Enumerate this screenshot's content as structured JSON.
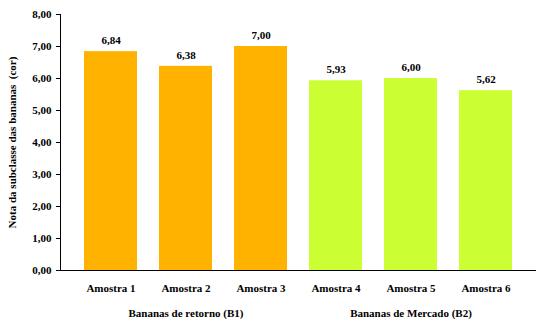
{
  "chart_data": {
    "type": "bar",
    "categories": [
      "Amostra 1",
      "Amostra 2",
      "Amostra 3",
      "Amostra 4",
      "Amostra 5",
      "Amostra 6"
    ],
    "series": [
      {
        "name": "Bananas de retorno (B1)",
        "color": "#FFB300",
        "values": [
          6.84,
          6.38,
          7.0,
          null,
          null,
          null
        ],
        "value_labels": [
          "6,84",
          "6,38",
          "7,00",
          null,
          null,
          null
        ]
      },
      {
        "name": "Bananas de Mercado (B2)",
        "color": "#CCFF33",
        "values": [
          null,
          null,
          null,
          5.93,
          6.0,
          5.62
        ],
        "value_labels": [
          null,
          null,
          null,
          "5,93",
          "6,00",
          "5,62"
        ]
      }
    ],
    "y_label": "Nota da subclasse das bananas  (cor)",
    "ylim": [
      0,
      8
    ],
    "yticks": [
      {
        "value": 0,
        "label": "0,00"
      },
      {
        "value": 1,
        "label": "1,00"
      },
      {
        "value": 2,
        "label": "2,00"
      },
      {
        "value": 3,
        "label": "3,00"
      },
      {
        "value": 4,
        "label": "4,00"
      },
      {
        "value": 5,
        "label": "5,00"
      },
      {
        "value": 6,
        "label": "6,00"
      },
      {
        "value": 7,
        "label": "7,00"
      },
      {
        "value": 8,
        "label": "8,00"
      }
    ],
    "data_labels": true,
    "grid": false
  }
}
